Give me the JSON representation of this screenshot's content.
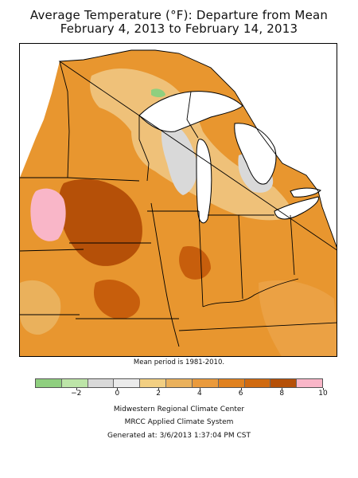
{
  "title": {
    "line1": "Average Temperature (°F): Departure from Mean",
    "line2": "February 4, 2013 to February 14, 2013"
  },
  "note": "Mean period is 1981-2010.",
  "legend": {
    "colors": [
      "#8fcf7f",
      "#bde5a8",
      "#d9d9d9",
      "#ebebeb",
      "#f2cf82",
      "#eab15c",
      "#ea9a3c",
      "#e0811f",
      "#d06a10",
      "#b55008",
      "#f9b6c8"
    ],
    "tick_labels": [
      {
        "value": -2,
        "label": "−2"
      },
      {
        "value": 0,
        "label": "0"
      },
      {
        "value": 2,
        "label": "2"
      },
      {
        "value": 4,
        "label": "4"
      },
      {
        "value": 6,
        "label": "6"
      },
      {
        "value": 8,
        "label": "8"
      },
      {
        "value": 10,
        "label": "10"
      }
    ],
    "min": -4,
    "max": 10
  },
  "footer": {
    "line1": "Midwestern Regional Climate Center",
    "line2": "MRCC Applied Climate System",
    "line3": "Generated at: 3/6/2013 1:37:04 PM CST"
  }
}
